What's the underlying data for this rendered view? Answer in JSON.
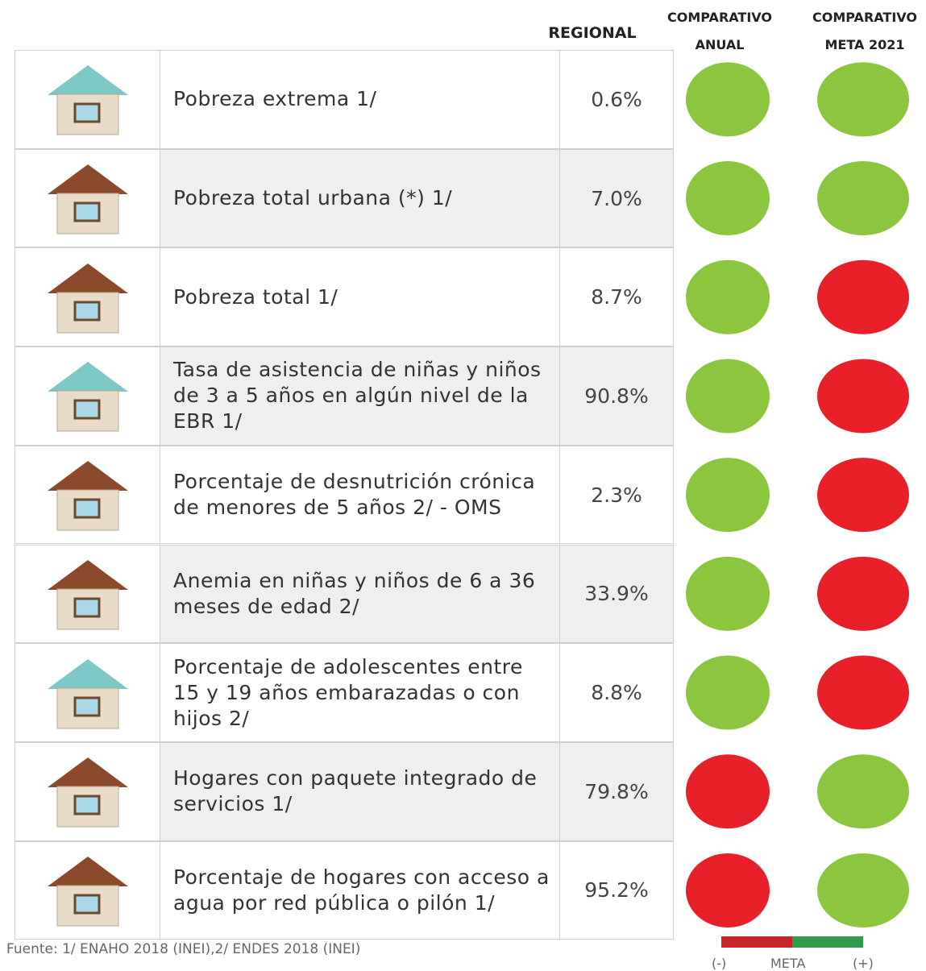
{
  "header": {
    "regional": "REGIONAL",
    "anual": {
      "line1": "COMPARATIVO",
      "line2": "ANUAL"
    },
    "meta": {
      "line1": "COMPARATIVO",
      "line2": "META 2021"
    }
  },
  "table": {
    "rows": [
      {
        "label": "Pobreza extrema 1/",
        "value": "0.6%",
        "anual_color": "#8cc63f",
        "meta_color": "#8cc63f"
      },
      {
        "label": "Pobreza total urbana (*) 1/",
        "value": "7.0%",
        "anual_color": "#8cc63f",
        "meta_color": "#8cc63f"
      },
      {
        "label": "Pobreza total 1/",
        "value": "8.7%",
        "anual_color": "#8cc63f",
        "meta_color": "#e8202a"
      },
      {
        "label": "Tasa de asistencia de niñas y niños de 3 a 5 años en algún nivel de la EBR 1/",
        "value": "90.8%",
        "anual_color": "#8cc63f",
        "meta_color": "#e8202a"
      },
      {
        "label": "Porcentaje de desnutrición crónica de menores de 5 años 2/ - OMS",
        "value": "2.3%",
        "anual_color": "#8cc63f",
        "meta_color": "#e8202a"
      },
      {
        "label": "Anemia en niñas y niños de 6 a 36 meses de edad 2/",
        "value": "33.9%",
        "anual_color": "#8cc63f",
        "meta_color": "#e8202a"
      },
      {
        "label": "Porcentaje de adolescentes entre 15 y 19 años embarazadas o con hijos 2/",
        "value": "8.8%",
        "anual_color": "#8cc63f",
        "meta_color": "#e8202a"
      },
      {
        "label": "Hogares con paquete integrado de servicios 1/",
        "value": "79.8%",
        "anual_color": "#e8202a",
        "meta_color": "#8cc63f"
      },
      {
        "label": "Porcentaje de hogares con acceso a agua por red pública o pilón 1/",
        "value": "95.2%",
        "anual_color": "#e8202a",
        "meta_color": "#8cc63f"
      }
    ]
  },
  "footer": {
    "source": "Fuente: 1/ ENAHO 2018 (INEI),2/ ENDES 2018 (INEI)"
  },
  "legend": {
    "minus": "(-)",
    "meta": "META",
    "plus": "(+)"
  }
}
